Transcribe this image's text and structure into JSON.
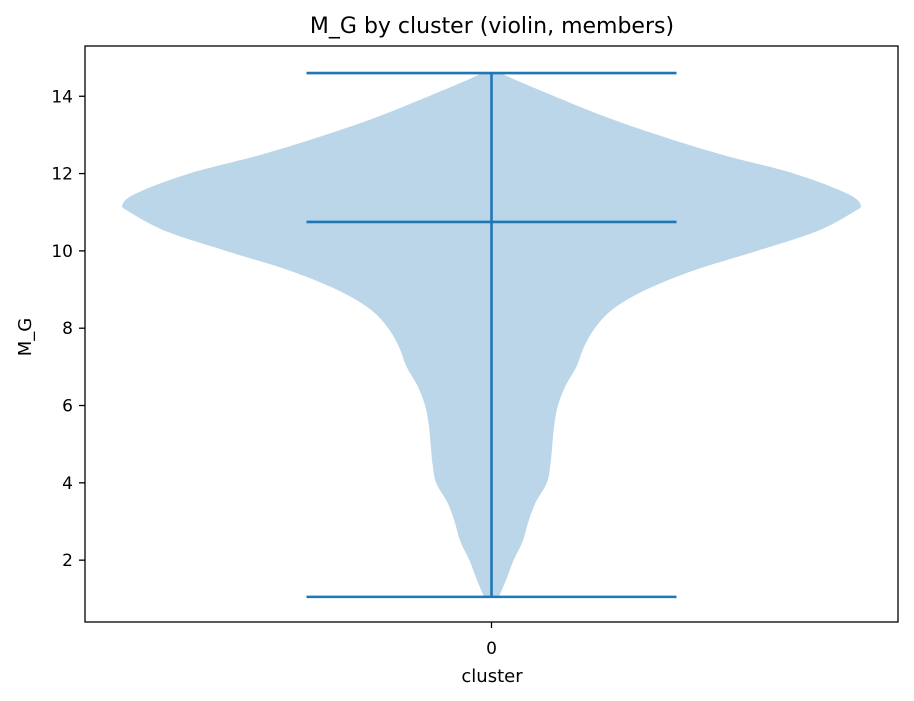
{
  "chart_data": {
    "type": "violin",
    "title": "M_G by cluster (violin, members)",
    "xlabel": "cluster",
    "ylabel": "M_G",
    "categories": [
      "0"
    ],
    "ylim": [
      0.4,
      15.3
    ],
    "yticks": [
      2,
      4,
      6,
      8,
      10,
      12,
      14
    ],
    "grid": false,
    "legend": "none",
    "violins": [
      {
        "category": "0",
        "min": 1.05,
        "max": 14.6,
        "mean": 10.75,
        "density_profile": [
          [
            1.05,
            0.02
          ],
          [
            1.5,
            0.04
          ],
          [
            2.0,
            0.06
          ],
          [
            2.5,
            0.085
          ],
          [
            3.0,
            0.1
          ],
          [
            3.5,
            0.12
          ],
          [
            4.0,
            0.15
          ],
          [
            4.5,
            0.16
          ],
          [
            5.0,
            0.165
          ],
          [
            5.5,
            0.17
          ],
          [
            6.0,
            0.18
          ],
          [
            6.5,
            0.2
          ],
          [
            7.0,
            0.23
          ],
          [
            7.5,
            0.25
          ],
          [
            8.0,
            0.28
          ],
          [
            8.5,
            0.33
          ],
          [
            9.0,
            0.42
          ],
          [
            9.5,
            0.55
          ],
          [
            10.0,
            0.72
          ],
          [
            10.5,
            0.88
          ],
          [
            11.0,
            0.98
          ],
          [
            11.2,
            1.0
          ],
          [
            11.5,
            0.96
          ],
          [
            12.0,
            0.82
          ],
          [
            12.5,
            0.62
          ],
          [
            13.0,
            0.45
          ],
          [
            13.5,
            0.3
          ],
          [
            14.0,
            0.17
          ],
          [
            14.4,
            0.07
          ],
          [
            14.6,
            0.02
          ]
        ]
      }
    ],
    "colors": {
      "body": "#bad6e8",
      "lines": "#1f77b4"
    }
  }
}
